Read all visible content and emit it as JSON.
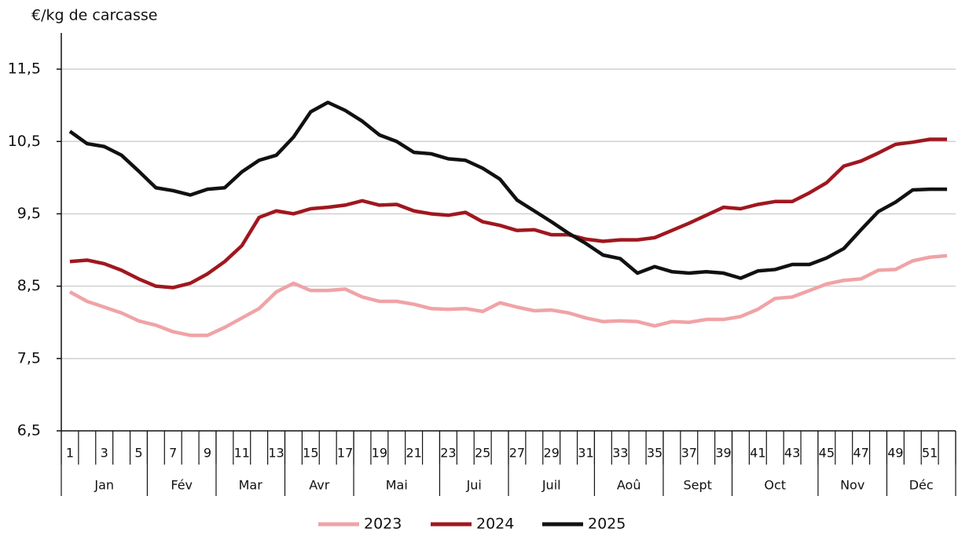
{
  "chart_data": {
    "type": "line",
    "y_label": "€/kg de carcasse",
    "categories": [
      "1",
      null,
      "3",
      null,
      "5",
      null,
      "7",
      null,
      "9",
      null,
      "11",
      null,
      "13",
      null,
      "15",
      null,
      "17",
      null,
      "19",
      null,
      "21",
      null,
      "23",
      null,
      "25",
      null,
      "27",
      null,
      "29",
      null,
      "31",
      null,
      "33",
      null,
      "35",
      null,
      "37",
      null,
      "39",
      null,
      "41",
      null,
      "43",
      null,
      "45",
      null,
      "47",
      null,
      "49",
      null,
      "51",
      null
    ],
    "months": [
      "Jan",
      "Fév",
      "Mar",
      "Avr",
      "Mai",
      "Jui",
      "Juil",
      "Aoû",
      "Sept",
      "Oct",
      "Nov",
      "Déc"
    ],
    "month_weeks": [
      5,
      4,
      4,
      4,
      5,
      4,
      5,
      4,
      4,
      5,
      4,
      4
    ],
    "series": [
      {
        "name": "2023",
        "color": "#f0a3a6",
        "values": [
          8.42,
          8.29,
          8.21,
          8.13,
          8.02,
          7.96,
          7.87,
          7.82,
          7.82,
          7.93,
          8.06,
          8.19,
          8.42,
          8.54,
          8.44,
          8.44,
          8.46,
          8.35,
          8.29,
          8.29,
          8.25,
          8.19,
          8.18,
          8.19,
          8.15,
          8.27,
          8.21,
          8.16,
          8.17,
          8.13,
          8.06,
          8.01,
          8.02,
          8.01,
          7.95,
          8.01,
          8.0,
          8.04,
          8.04,
          8.08,
          8.18,
          8.33,
          8.35,
          8.44,
          8.53,
          8.58,
          8.6,
          8.72,
          8.73,
          8.85,
          8.9,
          8.92
        ]
      },
      {
        "name": "2024",
        "color": "#a0171f",
        "values": [
          8.84,
          8.86,
          8.81,
          8.72,
          8.6,
          8.5,
          8.48,
          8.54,
          8.67,
          8.84,
          9.06,
          9.45,
          9.54,
          9.5,
          9.57,
          9.59,
          9.62,
          9.68,
          9.62,
          9.63,
          9.54,
          9.5,
          9.48,
          9.52,
          9.39,
          9.34,
          9.27,
          9.28,
          9.21,
          9.21,
          9.15,
          9.12,
          9.14,
          9.14,
          9.17,
          9.27,
          9.37,
          9.48,
          9.59,
          9.57,
          9.63,
          9.67,
          9.67,
          9.79,
          9.93,
          10.16,
          10.23,
          10.34,
          10.46,
          10.49,
          10.53,
          10.53
        ]
      },
      {
        "name": "2025",
        "color": "#111111",
        "values": [
          10.64,
          10.47,
          10.43,
          10.31,
          10.09,
          9.86,
          9.82,
          9.76,
          9.84,
          9.86,
          10.08,
          10.24,
          10.31,
          10.56,
          10.91,
          11.04,
          10.93,
          10.78,
          10.59,
          10.5,
          10.35,
          10.33,
          10.26,
          10.24,
          10.13,
          9.98,
          9.69,
          9.54,
          9.39,
          9.23,
          9.09,
          8.93,
          8.88,
          8.68,
          8.77,
          8.7,
          8.68,
          8.7,
          8.68,
          8.61,
          8.71,
          8.73,
          8.8,
          8.8,
          8.89,
          9.02,
          9.28,
          9.53,
          9.66,
          9.83,
          9.84,
          9.84
        ]
      }
    ],
    "ylim": [
      6.5,
      12
    ],
    "yticks": [
      {
        "value": 6.5,
        "label": "6,5"
      },
      {
        "value": 7.5,
        "label": "7,5"
      },
      {
        "value": 8.5,
        "label": "8,5"
      },
      {
        "value": 9.5,
        "label": "9,5"
      },
      {
        "value": 10.5,
        "label": "10,5"
      },
      {
        "value": 11.5,
        "label": "11,5"
      }
    ],
    "grid": true,
    "legend": "bottom"
  }
}
